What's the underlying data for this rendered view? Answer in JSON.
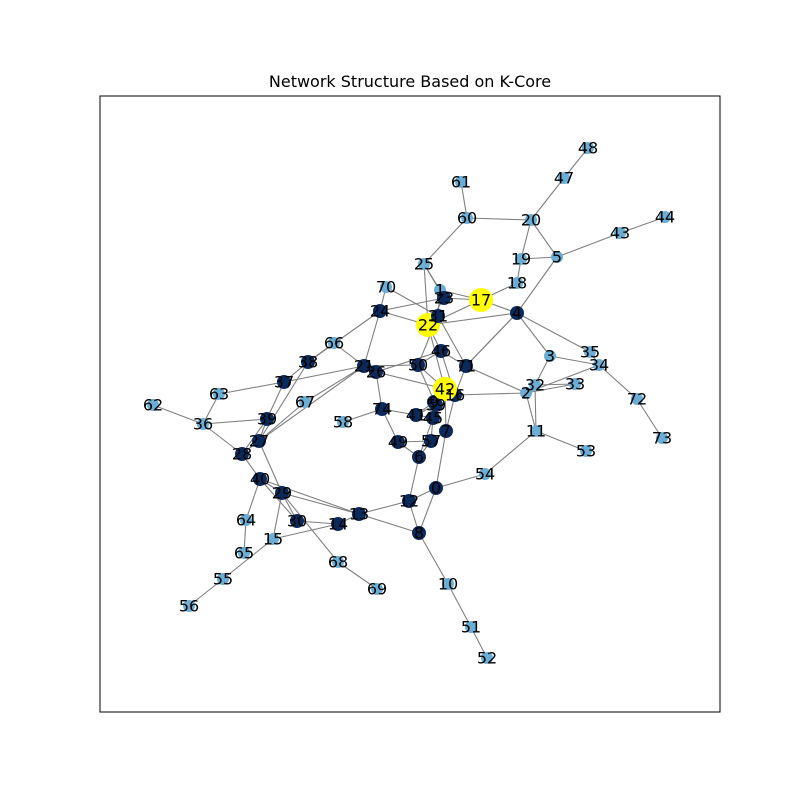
{
  "title": "Network Structure Based on K-Core",
  "colors": {
    "core": "#0b2a5c",
    "mid": "#6aaed6",
    "top": "#ffff00",
    "edge": "#808080",
    "frame": "#000000"
  },
  "nodes": [
    {
      "id": "0",
      "core": "core"
    },
    {
      "id": "1",
      "core": "mid"
    },
    {
      "id": "2",
      "core": "mid"
    },
    {
      "id": "3",
      "core": "mid"
    },
    {
      "id": "4",
      "core": "core"
    },
    {
      "id": "5",
      "core": "mid"
    },
    {
      "id": "6",
      "core": "core"
    },
    {
      "id": "7",
      "core": "core"
    },
    {
      "id": "8",
      "core": "core"
    },
    {
      "id": "9",
      "core": "core"
    },
    {
      "id": "10",
      "core": "mid"
    },
    {
      "id": "11",
      "core": "mid"
    },
    {
      "id": "12",
      "core": "core"
    },
    {
      "id": "13",
      "core": "core"
    },
    {
      "id": "14",
      "core": "core"
    },
    {
      "id": "15",
      "core": "mid"
    },
    {
      "id": "16",
      "core": "core"
    },
    {
      "id": "17",
      "core": "top"
    },
    {
      "id": "18",
      "core": "mid"
    },
    {
      "id": "19",
      "core": "mid"
    },
    {
      "id": "20",
      "core": "mid"
    },
    {
      "id": "21",
      "core": "core"
    },
    {
      "id": "22",
      "core": "top"
    },
    {
      "id": "23",
      "core": "core"
    },
    {
      "id": "24",
      "core": "core"
    },
    {
      "id": "25",
      "core": "mid"
    },
    {
      "id": "26",
      "core": "core"
    },
    {
      "id": "27",
      "core": "core"
    },
    {
      "id": "28",
      "core": "core"
    },
    {
      "id": "29",
      "core": "core"
    },
    {
      "id": "30",
      "core": "core"
    },
    {
      "id": "31",
      "core": "core"
    },
    {
      "id": "32",
      "core": "mid"
    },
    {
      "id": "33",
      "core": "mid"
    },
    {
      "id": "34",
      "core": "mid"
    },
    {
      "id": "35",
      "core": "mid"
    },
    {
      "id": "36",
      "core": "mid"
    },
    {
      "id": "37",
      "core": "core"
    },
    {
      "id": "38",
      "core": "core"
    },
    {
      "id": "39",
      "core": "core"
    },
    {
      "id": "40",
      "core": "core"
    },
    {
      "id": "41",
      "core": "core"
    },
    {
      "id": "42",
      "core": "top"
    },
    {
      "id": "43",
      "core": "mid"
    },
    {
      "id": "44",
      "core": "mid"
    },
    {
      "id": "45",
      "core": "core"
    },
    {
      "id": "46",
      "core": "core"
    },
    {
      "id": "47",
      "core": "mid"
    },
    {
      "id": "48",
      "core": "mid"
    },
    {
      "id": "49",
      "core": "core"
    },
    {
      "id": "50",
      "core": "core"
    },
    {
      "id": "51",
      "core": "mid"
    },
    {
      "id": "52",
      "core": "mid"
    },
    {
      "id": "53",
      "core": "mid"
    },
    {
      "id": "54",
      "core": "mid"
    },
    {
      "id": "55",
      "core": "mid"
    },
    {
      "id": "56",
      "core": "mid"
    },
    {
      "id": "57",
      "core": "core"
    },
    {
      "id": "58",
      "core": "mid"
    },
    {
      "id": "59",
      "core": "core"
    },
    {
      "id": "60",
      "core": "mid"
    },
    {
      "id": "61",
      "core": "mid"
    },
    {
      "id": "62",
      "core": "mid"
    },
    {
      "id": "63",
      "core": "mid"
    },
    {
      "id": "64",
      "core": "mid"
    },
    {
      "id": "65",
      "core": "mid"
    },
    {
      "id": "66",
      "core": "mid"
    },
    {
      "id": "67",
      "core": "mid"
    },
    {
      "id": "68",
      "core": "mid"
    },
    {
      "id": "69",
      "core": "mid"
    },
    {
      "id": "70",
      "core": "mid"
    },
    {
      "id": "71",
      "core": "core"
    },
    {
      "id": "72",
      "core": "mid"
    },
    {
      "id": "73",
      "core": "mid"
    },
    {
      "id": "74",
      "core": "core"
    }
  ]
}
